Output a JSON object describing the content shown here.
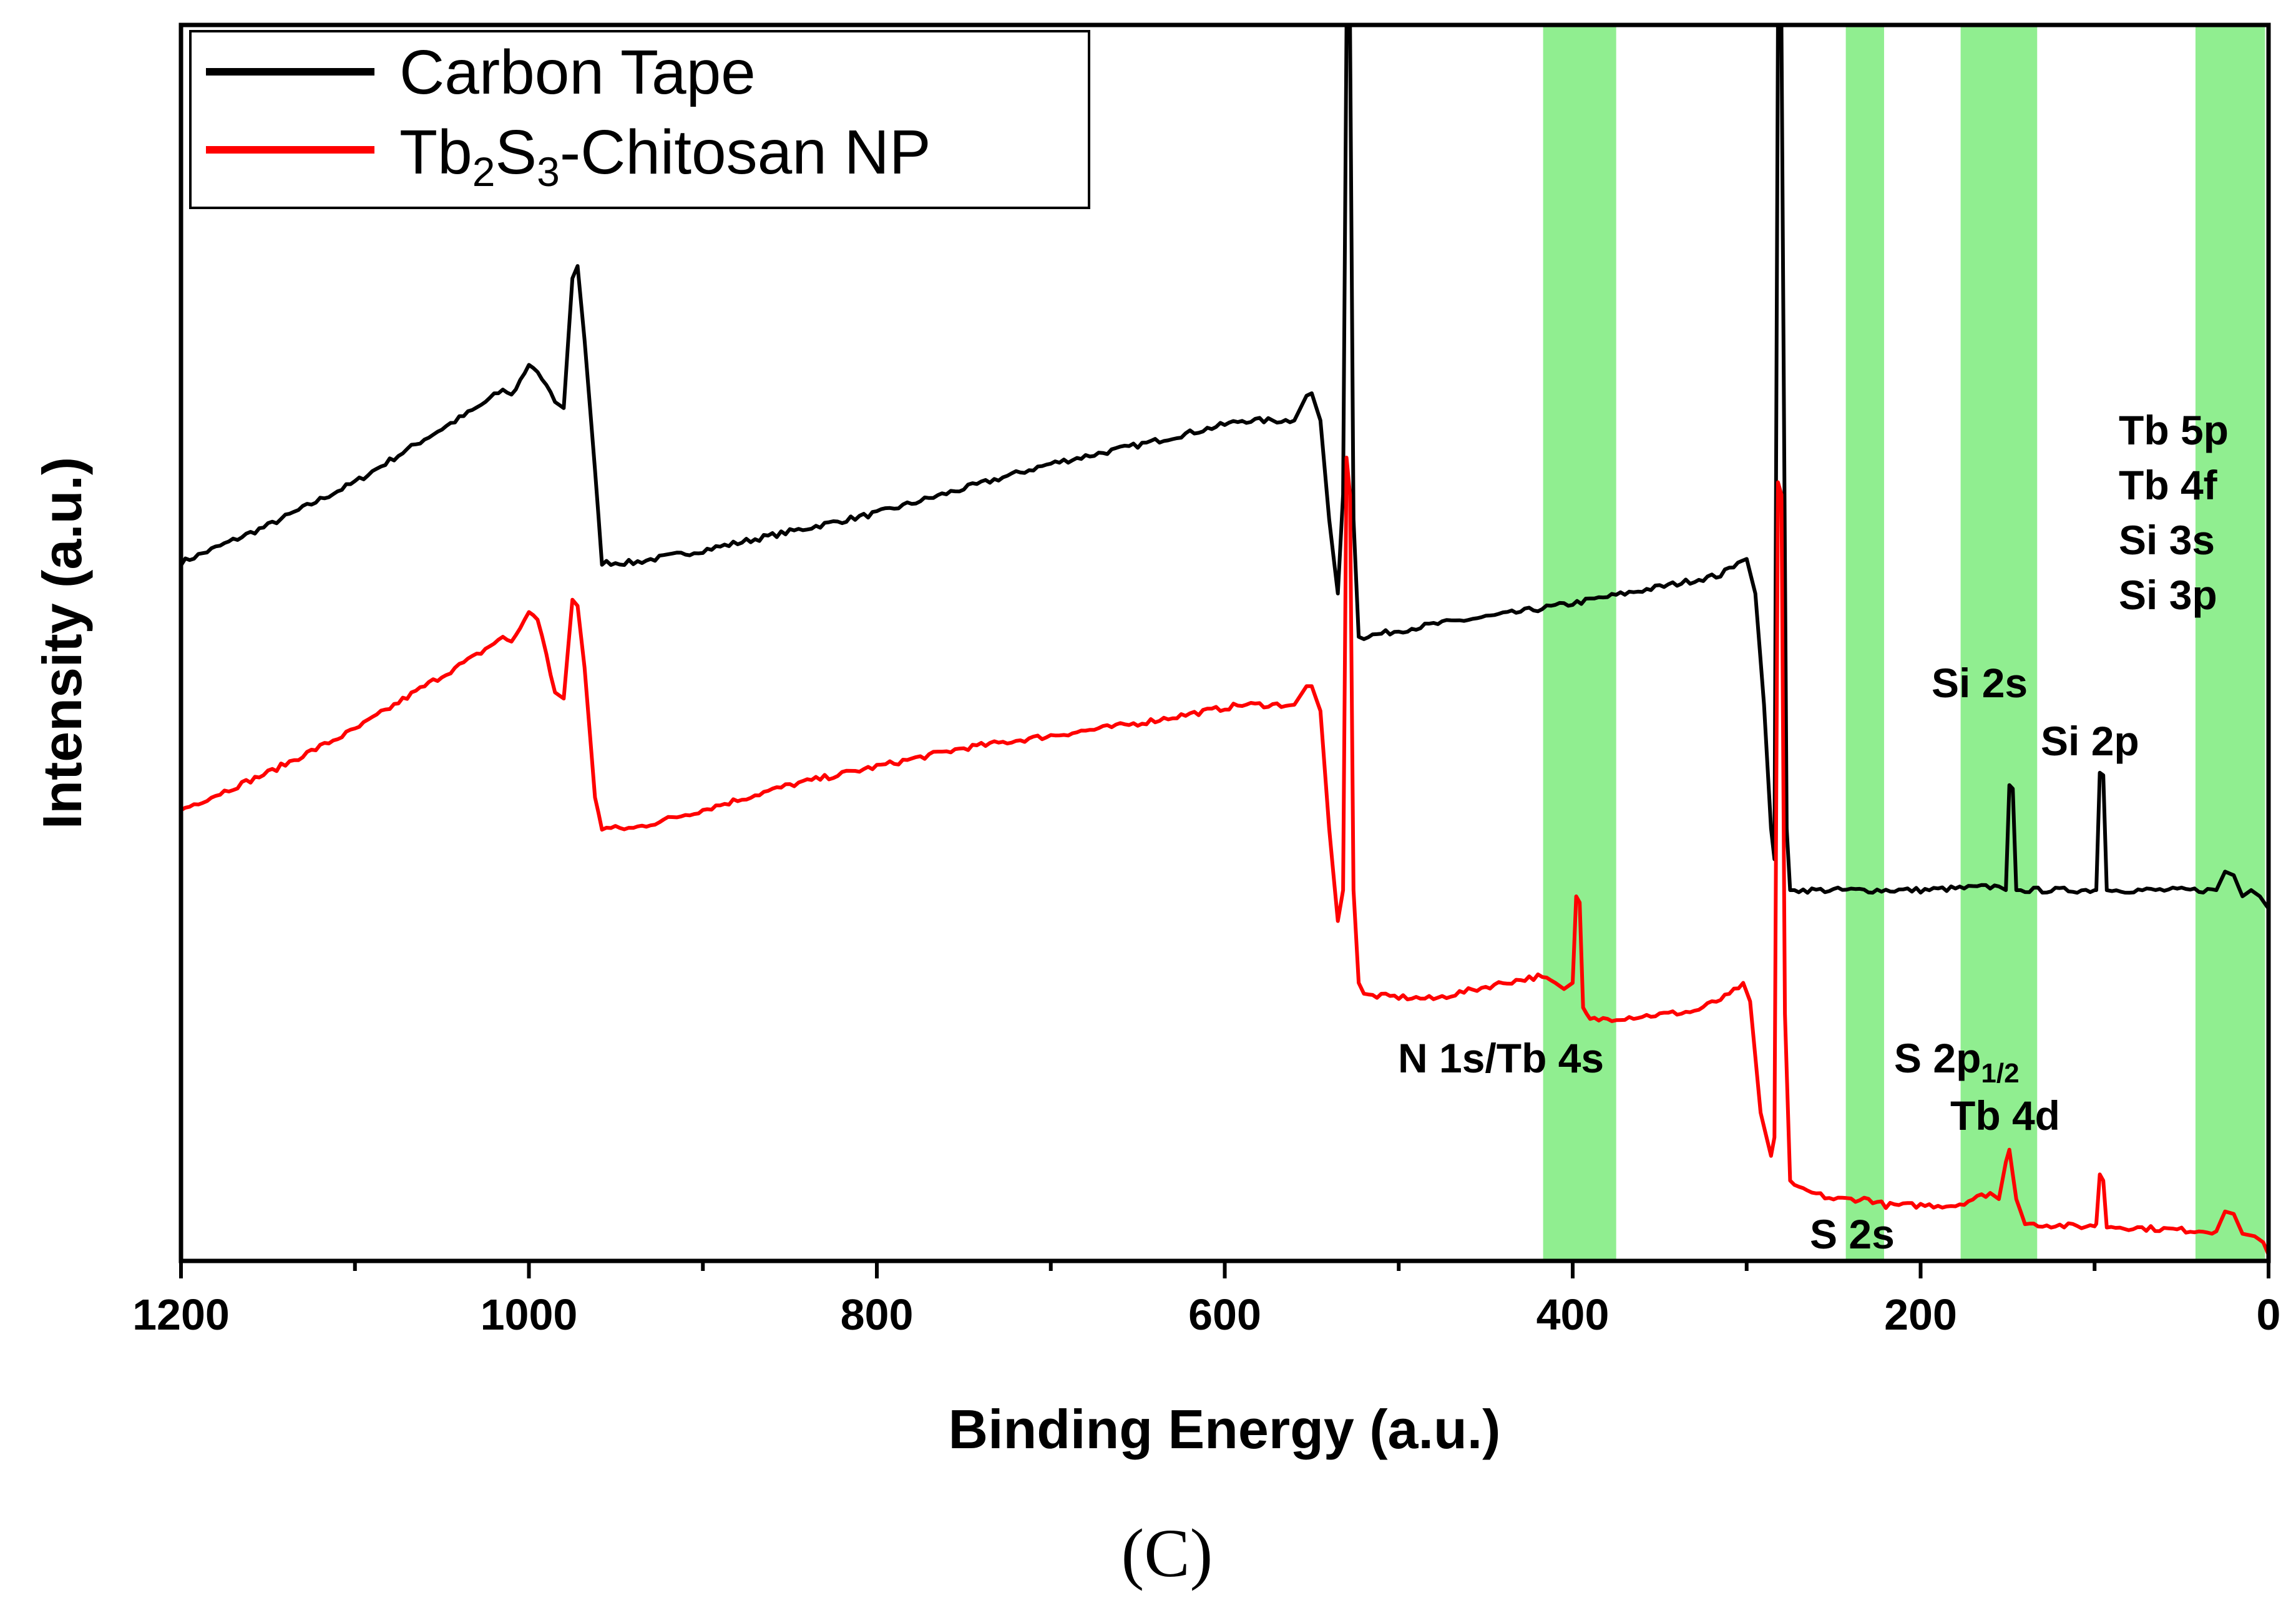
{
  "chart_data": {
    "type": "line",
    "title": "",
    "xlabel": "Binding Energy (a.u.)",
    "ylabel": "Intensity (a.u.)",
    "xlim": [
      1200,
      0
    ],
    "ylim": [
      0,
      100
    ],
    "x_reversed": true,
    "grid": false,
    "legend_position": "top-left",
    "xticks": [
      "1200",
      "1000",
      "800",
      "600",
      "400",
      "200",
      "0"
    ],
    "xtick_values": [
      1200,
      1000,
      800,
      600,
      400,
      200,
      0
    ],
    "highlight_bands": [
      {
        "from": 417,
        "to": 375,
        "color": "#90EE90"
      },
      {
        "from": 243,
        "to": 221,
        "color": "#90EE90"
      },
      {
        "from": 177,
        "to": 133,
        "color": "#90EE90"
      },
      {
        "from": 42,
        "to": 2,
        "color": "#90EE90"
      }
    ],
    "series": [
      {
        "name": "Carbon Tape",
        "color": "#000000",
        "points": [
          [
            1200,
            56.5
          ],
          [
            1150,
            59.5
          ],
          [
            1100,
            63.0
          ],
          [
            1060,
            66.5
          ],
          [
            1030,
            69.0
          ],
          [
            1015,
            70.5
          ],
          [
            1010,
            70.0
          ],
          [
            1000,
            72.5
          ],
          [
            995,
            72.0
          ],
          [
            985,
            69.5
          ],
          [
            980,
            69.0
          ],
          [
            975,
            79.5
          ],
          [
            972,
            80.5
          ],
          [
            968,
            74.5
          ],
          [
            962,
            64.0
          ],
          [
            958,
            56.5
          ],
          [
            940,
            56.5
          ],
          [
            900,
            57.5
          ],
          [
            850,
            59.0
          ],
          [
            800,
            60.5
          ],
          [
            750,
            62.5
          ],
          [
            700,
            64.5
          ],
          [
            650,
            66.0
          ],
          [
            590,
            68.0
          ],
          [
            560,
            68.0
          ],
          [
            553,
            70.0
          ],
          [
            550,
            70.2
          ],
          [
            545,
            68.0
          ],
          [
            540,
            60.0
          ],
          [
            535,
            54.0
          ],
          [
            532,
            62.0
          ],
          [
            530,
            100.0
          ],
          [
            528,
            100.0
          ],
          [
            526,
            60.0
          ],
          [
            523,
            50.5
          ],
          [
            520,
            50.5
          ],
          [
            480,
            51.5
          ],
          [
            440,
            52.3
          ],
          [
            400,
            53.2
          ],
          [
            370,
            54.0
          ],
          [
            340,
            54.8
          ],
          [
            315,
            55.5
          ],
          [
            305,
            56.5
          ],
          [
            300,
            56.8
          ],
          [
            295,
            54.0
          ],
          [
            290,
            45.0
          ],
          [
            286,
            35.0
          ],
          [
            284,
            32.5
          ],
          [
            282,
            100.0
          ],
          [
            280,
            100.0
          ],
          [
            277,
            35.0
          ],
          [
            275,
            30.0
          ],
          [
            270,
            30.0
          ],
          [
            200,
            30.0
          ],
          [
            155,
            30.3
          ],
          [
            151,
            30.0
          ],
          [
            149,
            38.5
          ],
          [
            147,
            38.2
          ],
          [
            145,
            30.0
          ],
          [
            140,
            30.0
          ],
          [
            100,
            30.0
          ],
          [
            99,
            30.0
          ],
          [
            97,
            39.5
          ],
          [
            95,
            39.3
          ],
          [
            93,
            30.0
          ],
          [
            90,
            30.0
          ],
          [
            30,
            30.0
          ],
          [
            25,
            31.5
          ],
          [
            20,
            31.2
          ],
          [
            15,
            29.5
          ],
          [
            10,
            30.0
          ],
          [
            5,
            29.5
          ],
          [
            0,
            28.5
          ]
        ]
      },
      {
        "name": "Tb2S3-Chitosan NP",
        "color": "#ff0000",
        "points": [
          [
            1200,
            36.5
          ],
          [
            1150,
            39.5
          ],
          [
            1100,
            43.0
          ],
          [
            1060,
            46.5
          ],
          [
            1030,
            49.0
          ],
          [
            1015,
            50.5
          ],
          [
            1010,
            50.0
          ],
          [
            1000,
            52.5
          ],
          [
            995,
            52.0
          ],
          [
            985,
            46.0
          ],
          [
            980,
            45.5
          ],
          [
            975,
            53.5
          ],
          [
            972,
            53.0
          ],
          [
            968,
            48.0
          ],
          [
            962,
            37.5
          ],
          [
            958,
            35.0
          ],
          [
            940,
            35.0
          ],
          [
            900,
            36.5
          ],
          [
            850,
            38.5
          ],
          [
            800,
            40.0
          ],
          [
            750,
            41.5
          ],
          [
            700,
            42.5
          ],
          [
            650,
            43.5
          ],
          [
            590,
            45.0
          ],
          [
            560,
            45.0
          ],
          [
            553,
            46.5
          ],
          [
            550,
            46.5
          ],
          [
            545,
            44.5
          ],
          [
            540,
            35.0
          ],
          [
            535,
            27.5
          ],
          [
            532,
            30.0
          ],
          [
            530,
            65.0
          ],
          [
            528,
            62.0
          ],
          [
            526,
            30.0
          ],
          [
            523,
            22.5
          ],
          [
            520,
            21.5
          ],
          [
            480,
            21.2
          ],
          [
            440,
            22.5
          ],
          [
            420,
            23.0
          ],
          [
            410,
            22.5
          ],
          [
            405,
            22.0
          ],
          [
            400,
            22.5
          ],
          [
            398,
            29.5
          ],
          [
            396,
            29.0
          ],
          [
            394,
            20.5
          ],
          [
            390,
            19.5
          ],
          [
            360,
            19.8
          ],
          [
            330,
            20.2
          ],
          [
            310,
            21.5
          ],
          [
            302,
            22.5
          ],
          [
            298,
            21.0
          ],
          [
            292,
            12.0
          ],
          [
            286,
            8.5
          ],
          [
            284,
            10.0
          ],
          [
            282,
            63.0
          ],
          [
            280,
            62.0
          ],
          [
            278,
            20.0
          ],
          [
            275,
            6.5
          ],
          [
            270,
            5.8
          ],
          [
            250,
            5.0
          ],
          [
            230,
            5.0
          ],
          [
            220,
            4.5
          ],
          [
            180,
            4.5
          ],
          [
            160,
            5.5
          ],
          [
            155,
            5.0
          ],
          [
            151,
            8.0
          ],
          [
            149,
            9.0
          ],
          [
            145,
            5.0
          ],
          [
            140,
            3.0
          ],
          [
            110,
            2.8
          ],
          [
            100,
            2.8
          ],
          [
            99,
            3.0
          ],
          [
            97,
            7.0
          ],
          [
            95,
            6.5
          ],
          [
            93,
            2.8
          ],
          [
            50,
            2.5
          ],
          [
            30,
            2.4
          ],
          [
            25,
            4.0
          ],
          [
            20,
            3.8
          ],
          [
            15,
            2.2
          ],
          [
            8,
            2.0
          ],
          [
            3,
            1.5
          ],
          [
            0,
            0.5
          ]
        ]
      }
    ],
    "legend": [
      {
        "label_main": "Tb",
        "sub1": "2",
        "mid": "S",
        "sub2": "3",
        "tail": "-Chitosan NP"
      }
    ],
    "legend_first": "Carbon Tape",
    "annotations": {
      "tb5p": "Tb 5p",
      "tb4f": "Tb 4f",
      "si3s": "Si 3s",
      "si3p": "Si 3p",
      "si2s": "Si 2s",
      "si2p": "Si 2p",
      "n1s": "N 1s/Tb 4s",
      "s2p": "S 2p",
      "s2p_sub": "1/2",
      "tb4d": "Tb 4d",
      "s2s": "S 2s"
    },
    "caption": "(C)"
  }
}
